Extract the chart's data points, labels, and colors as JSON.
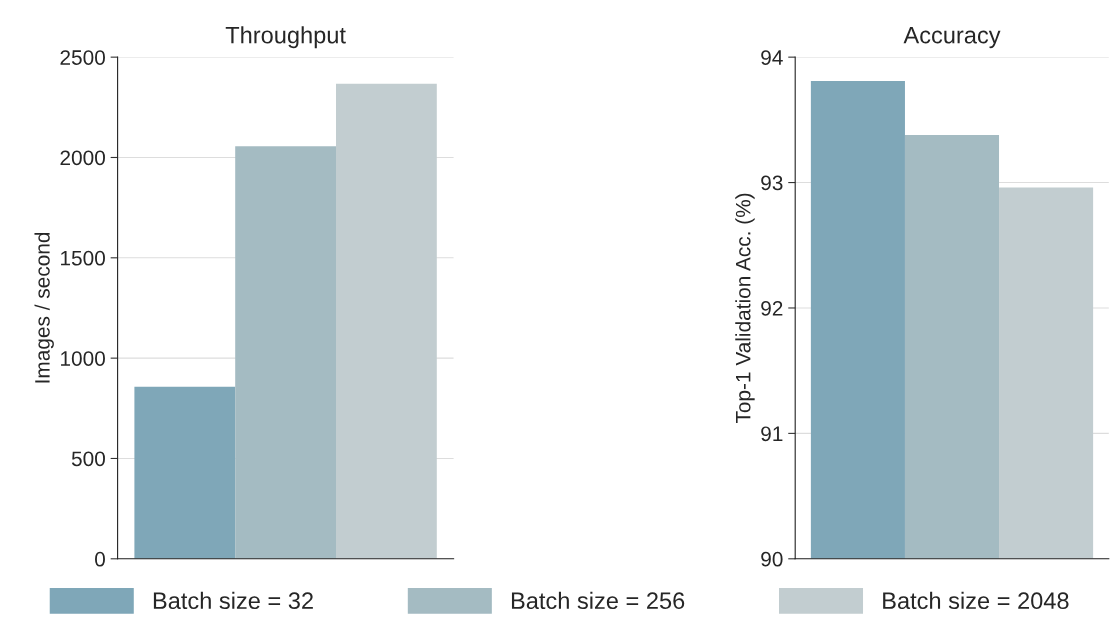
{
  "chart_data": [
    {
      "type": "bar",
      "title": "Throughput",
      "ylabel": "Images / second",
      "categories": [
        null
      ],
      "series": [
        {
          "name": "Batch size = 32",
          "color": "#7fa7b8",
          "values": [
            858
          ]
        },
        {
          "name": "Batch size = 256",
          "color": "#a4bbc2",
          "values": [
            2056
          ]
        },
        {
          "name": "Batch size = 2048",
          "color": "#c2cdd0",
          "values": [
            2368
          ]
        }
      ],
      "ylim": [
        0,
        2500
      ],
      "yticks": [
        0,
        500,
        1000,
        1500,
        2000,
        2500
      ],
      "grid": "y",
      "legend": "bottom"
    },
    {
      "type": "bar",
      "title": "Accuracy",
      "ylabel": "Top-1 Validation Acc. (%)",
      "categories": [
        null
      ],
      "series": [
        {
          "color": "#7fa7b8",
          "values": [
            93.81
          ]
        },
        {
          "color": "#a4bbc2",
          "values": [
            93.38
          ]
        },
        {
          "color": "#c2cdd0",
          "values": [
            92.96
          ]
        }
      ],
      "ylim": [
        90,
        94
      ],
      "yticks": [
        90,
        91,
        92,
        93,
        94
      ],
      "grid": "y"
    }
  ]
}
